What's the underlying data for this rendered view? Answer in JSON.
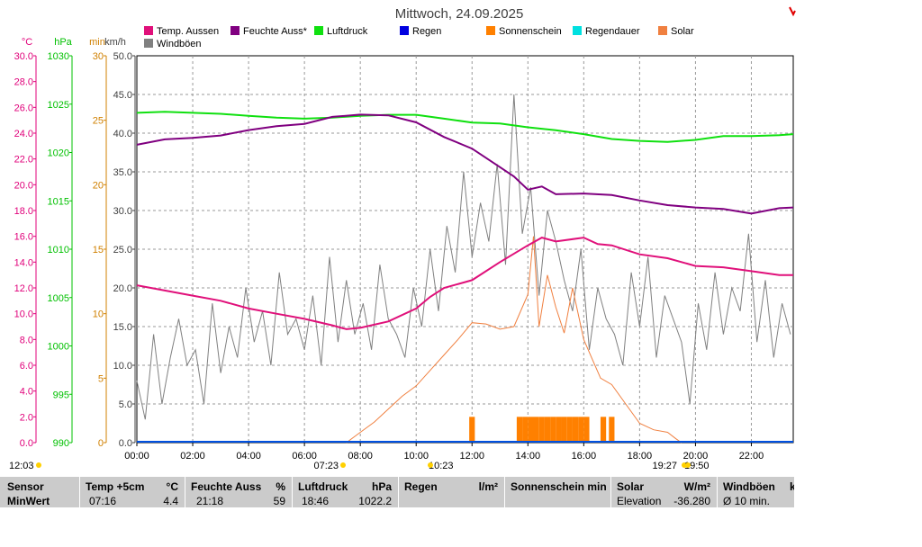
{
  "chart_data": {
    "type": "line",
    "title": "Mittwoch, 24.09.2025",
    "x_ticks": [
      "00:00",
      "02:00",
      "04:00",
      "06:00",
      "08:00",
      "10:00",
      "12:00",
      "14:00",
      "16:00",
      "18:00",
      "20:00",
      "22:00"
    ],
    "x_range_hours": [
      0,
      23.5
    ],
    "axes": [
      {
        "unit": "°C",
        "color": "#e0007a",
        "min": 0,
        "max": 30,
        "ticks": [
          "0.0",
          "2.0",
          "4.0",
          "6.0",
          "8.0",
          "10.0",
          "12.0",
          "14.0",
          "16.0",
          "18.0",
          "20.0",
          "22.0",
          "24.0",
          "26.0",
          "28.0",
          "30.0"
        ]
      },
      {
        "unit": "hPa",
        "color": "#00c000",
        "min": 990,
        "max": 1030,
        "ticks": [
          "990",
          "995",
          "1000",
          "1005",
          "1010",
          "1015",
          "1020",
          "1025",
          "1030"
        ]
      },
      {
        "unit": "min",
        "color": "#d08000",
        "min": 0,
        "max": 30,
        "ticks": [
          "0",
          "5",
          "10",
          "15",
          "20",
          "25",
          "30"
        ]
      },
      {
        "unit": "km/h",
        "color": "#404040",
        "min": 0,
        "max": 50,
        "ticks": [
          "0.0",
          "5.0",
          "10.0",
          "15.0",
          "20.0",
          "25.0",
          "30.0",
          "35.0",
          "40.0",
          "45.0",
          "50.0"
        ]
      }
    ],
    "legend": [
      {
        "name": "Temp. Aussen",
        "color": "#e0107a"
      },
      {
        "name": "Feuchte Auss*",
        "color": "#800080"
      },
      {
        "name": "Luftdruck",
        "color": "#10e010"
      },
      {
        "name": "Regen",
        "color": "#0000e0"
      },
      {
        "name": "Sonnenschein",
        "color": "#ff8000"
      },
      {
        "name": "Regendauer",
        "color": "#00e0e0"
      },
      {
        "name": "Solar",
        "color": "#f08040"
      },
      {
        "name": "Windböen",
        "color": "#808080"
      }
    ],
    "series": [
      {
        "name": "Temp. Aussen",
        "axis": "°C",
        "color": "#e0107a",
        "x": [
          0,
          1,
          2,
          3,
          4,
          5,
          6,
          7,
          7.5,
          8,
          9,
          10,
          10.5,
          11,
          12,
          13,
          14,
          14.5,
          15,
          16,
          16.5,
          17,
          18,
          19,
          20,
          21,
          22,
          23,
          23.5
        ],
        "y": [
          12.2,
          11.8,
          11.4,
          11.0,
          10.4,
          10.0,
          9.6,
          9.1,
          8.8,
          8.9,
          9.4,
          10.4,
          11.3,
          12.0,
          12.6,
          14.0,
          15.3,
          15.9,
          15.6,
          15.9,
          15.4,
          15.3,
          14.6,
          14.3,
          13.7,
          13.6,
          13.3,
          13.0,
          13.0
        ]
      },
      {
        "name": "Feuchte Auss*",
        "axis": "km/h",
        "color": "#800080",
        "x": [
          0,
          1,
          2,
          3,
          4,
          5,
          6,
          7,
          8,
          9,
          10,
          11,
          12,
          13,
          13.5,
          14,
          14.5,
          15,
          16,
          17,
          18,
          19,
          20,
          21,
          22,
          23,
          23.5
        ],
        "y": [
          38.5,
          39.2,
          39.4,
          39.7,
          40.4,
          40.9,
          41.2,
          42.1,
          42.4,
          42.3,
          41.4,
          39.5,
          38.0,
          35.6,
          34.4,
          32.7,
          33.1,
          32.1,
          32.2,
          32.0,
          31.3,
          30.7,
          30.4,
          30.2,
          29.6,
          30.3,
          30.4
        ]
      },
      {
        "name": "Luftdruck",
        "axis": "hPa",
        "color": "#10e010",
        "x": [
          0,
          1,
          2,
          3,
          4,
          5,
          6,
          7,
          8,
          9,
          10,
          11,
          12,
          13,
          14,
          15,
          16,
          17,
          18,
          19,
          20,
          21,
          22,
          23,
          23.5
        ],
        "y": [
          1024.1,
          1024.2,
          1024.1,
          1024.0,
          1023.8,
          1023.6,
          1023.5,
          1023.6,
          1023.8,
          1023.9,
          1023.9,
          1023.5,
          1023.1,
          1023.0,
          1022.6,
          1022.3,
          1021.9,
          1021.4,
          1021.2,
          1021.1,
          1021.3,
          1021.7,
          1021.7,
          1021.8,
          1021.9
        ]
      },
      {
        "name": "Solar",
        "axis": "min",
        "color": "#f08040",
        "x": [
          7.5,
          8,
          8.5,
          9,
          9.5,
          10,
          10.5,
          11,
          11.5,
          12,
          12.5,
          13,
          13.5,
          14,
          14.2,
          14.4,
          14.7,
          15,
          15.3,
          15.6,
          16,
          16.3,
          16.6,
          17,
          17.5,
          18,
          18.5,
          19,
          19.3,
          19.5
        ],
        "y": [
          0,
          0.8,
          1.6,
          2.6,
          3.6,
          4.4,
          5.6,
          6.8,
          8.0,
          9.3,
          9.2,
          8.8,
          9.0,
          11.5,
          16.0,
          9.0,
          13.0,
          10.5,
          8.5,
          12.0,
          8.0,
          6.5,
          5.0,
          4.5,
          3.0,
          1.5,
          1.0,
          0.8,
          0.3,
          0
        ]
      },
      {
        "name": "Windböen",
        "axis": "km/h",
        "color": "#808080",
        "x": [
          0,
          0.3,
          0.6,
          0.9,
          1.2,
          1.5,
          1.8,
          2.1,
          2.4,
          2.7,
          3.0,
          3.3,
          3.6,
          3.9,
          4.2,
          4.5,
          4.8,
          5.1,
          5.4,
          5.7,
          6.0,
          6.3,
          6.6,
          6.9,
          7.2,
          7.5,
          7.8,
          8.1,
          8.4,
          8.7,
          9.0,
          9.3,
          9.6,
          9.9,
          10.2,
          10.5,
          10.8,
          11.1,
          11.4,
          11.7,
          12.0,
          12.3,
          12.6,
          12.9,
          13.2,
          13.5,
          13.8,
          14.1,
          14.4,
          14.7,
          15.0,
          15.3,
          15.6,
          15.9,
          16.2,
          16.5,
          16.8,
          17.1,
          17.4,
          17.7,
          18.0,
          18.3,
          18.6,
          18.9,
          19.2,
          19.5,
          19.8,
          20.1,
          20.4,
          20.7,
          21.0,
          21.3,
          21.6,
          21.9,
          22.2,
          22.5,
          22.8,
          23.1,
          23.4
        ],
        "y": [
          8,
          3,
          14,
          5,
          11,
          16,
          10,
          12,
          5,
          18,
          9,
          15,
          11,
          20,
          13,
          17,
          10,
          22,
          14,
          16,
          12,
          19,
          10,
          24,
          13,
          21,
          14,
          18,
          12,
          23,
          16,
          14,
          11,
          20,
          15,
          25,
          17,
          28,
          22,
          35,
          24,
          31,
          26,
          36,
          23,
          45,
          27,
          33,
          19,
          30,
          26,
          21,
          17,
          25,
          12,
          20,
          16,
          14,
          10,
          22,
          15,
          24,
          11,
          19,
          16,
          13,
          5,
          18,
          12,
          22,
          14,
          20,
          17,
          27,
          13,
          21,
          11,
          18,
          14
        ]
      }
    ],
    "bars": [
      {
        "name": "Sonnenschein",
        "axis": "min",
        "color": "#ff8000",
        "x": [
          11.9,
          13.6,
          13.8,
          14.0,
          14.2,
          14.4,
          14.6,
          14.8,
          15.0,
          15.2,
          15.4,
          15.6,
          15.8,
          16.0,
          16.6,
          16.9
        ],
        "y": [
          2,
          2,
          2,
          2,
          2,
          2,
          2,
          2,
          2,
          2,
          2,
          2,
          2,
          2,
          2,
          2
        ]
      }
    ],
    "regen_x_range": [
      0,
      23.5
    ],
    "sun_markers": [
      {
        "label": "12:03",
        "side": "left"
      },
      {
        "label": "07:23",
        "side": "below"
      },
      {
        "label": "10:23",
        "side": "below"
      },
      {
        "label": "19:27",
        "side": "below"
      },
      {
        "label": "19:50",
        "side": "below"
      }
    ]
  },
  "table": {
    "row_label_1": "Sensor",
    "row_label_2": "MinWert",
    "columns": [
      {
        "name": "Temp +5cm",
        "unit": "°C",
        "time": "07:16",
        "value": "4.4"
      },
      {
        "name": "Feuchte Auss",
        "unit": "%",
        "time": "21:18",
        "value": "59"
      },
      {
        "name": "Luftdruck",
        "unit": "hPa",
        "time": "18:46",
        "value": "1022.2"
      },
      {
        "name": "Regen",
        "unit": "l/m²",
        "time": "",
        "value": ""
      },
      {
        "name": "Sonnenschein min",
        "unit": "",
        "time": "",
        "value": ""
      },
      {
        "name": "Solar",
        "unit": "W/m²",
        "time": "Elevation",
        "value": "-36.280"
      },
      {
        "name": "Windböen",
        "unit": "k",
        "time": "Ø 10 min.",
        "value": ""
      }
    ]
  }
}
